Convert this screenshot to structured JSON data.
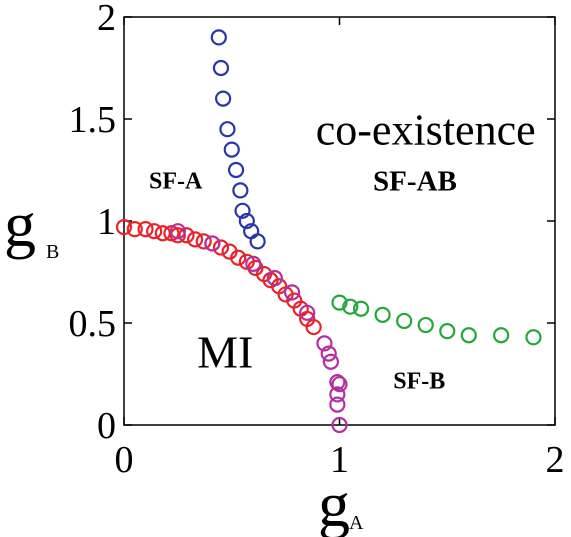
{
  "chart_data": {
    "type": "scatter",
    "xlabel": "g",
    "xlabel_sub": "A",
    "ylabel": "g",
    "ylabel_sub": "B",
    "xlim": [
      0,
      2
    ],
    "ylim": [
      0,
      2
    ],
    "xticks": [
      0,
      1,
      2
    ],
    "xtick_labels": [
      "0",
      "1",
      "2"
    ],
    "yticks": [
      0,
      0.5,
      1,
      1.5,
      2
    ],
    "ytick_labels": [
      "0",
      "0.5",
      "1",
      "1.5",
      "2"
    ],
    "grid": false,
    "marker": "open-circle",
    "series": [
      {
        "color": "#2a35a8",
        "points": [
          [
            0.44,
            1.9
          ],
          [
            0.45,
            1.75
          ],
          [
            0.46,
            1.6
          ],
          [
            0.48,
            1.45
          ],
          [
            0.5,
            1.35
          ],
          [
            0.52,
            1.25
          ],
          [
            0.54,
            1.15
          ],
          [
            0.55,
            1.05
          ],
          [
            0.57,
            1.0
          ],
          [
            0.59,
            0.95
          ],
          [
            0.62,
            0.9
          ]
        ]
      },
      {
        "color": "#e8232a",
        "points": [
          [
            0.0,
            0.97
          ],
          [
            0.05,
            0.96
          ],
          [
            0.1,
            0.96
          ],
          [
            0.14,
            0.95
          ],
          [
            0.18,
            0.94
          ],
          [
            0.22,
            0.94
          ],
          [
            0.25,
            0.93
          ],
          [
            0.29,
            0.93
          ],
          [
            0.33,
            0.91
          ],
          [
            0.37,
            0.9
          ],
          [
            0.41,
            0.89
          ],
          [
            0.45,
            0.87
          ],
          [
            0.49,
            0.85
          ],
          [
            0.53,
            0.82
          ],
          [
            0.57,
            0.8
          ],
          [
            0.61,
            0.77
          ],
          [
            0.65,
            0.74
          ],
          [
            0.68,
            0.71
          ],
          [
            0.72,
            0.68
          ],
          [
            0.75,
            0.64
          ],
          [
            0.79,
            0.61
          ],
          [
            0.82,
            0.57
          ],
          [
            0.85,
            0.52
          ],
          [
            0.88,
            0.48
          ]
        ]
      },
      {
        "color": "#b52fa3",
        "points": [
          [
            0.25,
            0.95
          ],
          [
            0.41,
            0.89
          ],
          [
            0.6,
            0.79
          ],
          [
            0.7,
            0.72
          ],
          [
            0.78,
            0.65
          ],
          [
            0.85,
            0.55
          ],
          [
            0.93,
            0.4
          ],
          [
            0.95,
            0.35
          ],
          [
            0.96,
            0.31
          ],
          [
            0.99,
            0.21
          ],
          [
            1.0,
            0.2
          ],
          [
            0.99,
            0.15
          ],
          [
            0.99,
            0.1
          ],
          [
            1.0,
            0.0
          ]
        ]
      },
      {
        "color": "#22a838",
        "points": [
          [
            1.0,
            0.6
          ],
          [
            1.05,
            0.58
          ],
          [
            1.1,
            0.57
          ],
          [
            1.2,
            0.54
          ],
          [
            1.3,
            0.51
          ],
          [
            1.4,
            0.49
          ],
          [
            1.5,
            0.46
          ],
          [
            1.6,
            0.44
          ],
          [
            1.75,
            0.44
          ],
          [
            1.9,
            0.43
          ]
        ]
      }
    ],
    "annotations": [
      {
        "text": "co-existence",
        "x": 1.4,
        "y": 1.45,
        "style": "normal"
      },
      {
        "text": "SF-A",
        "x": 0.24,
        "y": 1.2,
        "style": "bold"
      },
      {
        "text": "SF-AB",
        "x": 1.35,
        "y": 1.2,
        "style": "bold"
      },
      {
        "text": "MI",
        "x": 0.47,
        "y": 0.36,
        "style": "normal"
      },
      {
        "text": "SF-B",
        "x": 1.37,
        "y": 0.22,
        "style": "bold"
      }
    ]
  }
}
